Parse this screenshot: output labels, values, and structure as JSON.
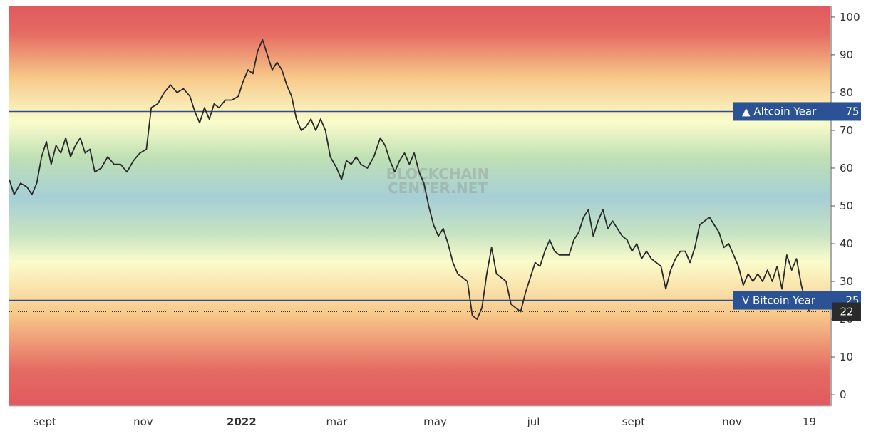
{
  "watermark": {
    "line1": "BLOCKCHAIN",
    "line2": "CENTER.NET"
  },
  "colors": {
    "top": "#e05a5f",
    "orange": "#f7c98a",
    "yellow": "#fbfccc",
    "green": "#bfe0b4",
    "blue": "#a6cfd6",
    "line": "#2a2a2a",
    "threshold_line": "#2a4f8c",
    "badge": "#2a5295",
    "current_badge": "#2b2b2b"
  },
  "chart_data": {
    "type": "line",
    "title": "",
    "ylim": [
      -3,
      103
    ],
    "y_ticks": [
      0,
      10,
      20,
      30,
      40,
      50,
      60,
      70,
      80,
      90,
      100
    ],
    "x_tick_labels": [
      "sept",
      "nov",
      "2022",
      "mar",
      "may",
      "jul",
      "sept",
      "nov",
      "19"
    ],
    "x_tick_dates": [
      "2021-09-01",
      "2021-11-01",
      "2022-01-01",
      "2022-03-01",
      "2022-05-01",
      "2022-07-01",
      "2022-09-01",
      "2022-11-01",
      "2022-12-19"
    ],
    "x_range": [
      "2021-08-10",
      "2023-01-01"
    ],
    "thresholds": [
      {
        "label": "Altcoin Year",
        "value": 75,
        "arrow": "▲"
      },
      {
        "label": "Bitcoin Year",
        "value": 25,
        "arrow": "V"
      }
    ],
    "current_value": 22,
    "series": [
      {
        "values": [
          [
            "2021-08-10",
            57
          ],
          [
            "2021-08-13",
            53
          ],
          [
            "2021-08-17",
            56
          ],
          [
            "2021-08-21",
            55
          ],
          [
            "2021-08-24",
            53
          ],
          [
            "2021-08-27",
            56
          ],
          [
            "2021-08-30",
            63
          ],
          [
            "2021-09-02",
            67
          ],
          [
            "2021-09-05",
            61
          ],
          [
            "2021-09-08",
            66
          ],
          [
            "2021-09-11",
            64
          ],
          [
            "2021-09-14",
            68
          ],
          [
            "2021-09-17",
            63
          ],
          [
            "2021-09-20",
            66
          ],
          [
            "2021-09-23",
            68
          ],
          [
            "2021-09-26",
            64
          ],
          [
            "2021-09-29",
            65
          ],
          [
            "2021-10-02",
            59
          ],
          [
            "2021-10-06",
            60
          ],
          [
            "2021-10-10",
            63
          ],
          [
            "2021-10-14",
            61
          ],
          [
            "2021-10-18",
            61
          ],
          [
            "2021-10-22",
            59
          ],
          [
            "2021-10-26",
            62
          ],
          [
            "2021-10-30",
            64
          ],
          [
            "2021-11-03",
            65
          ],
          [
            "2021-11-06",
            76
          ],
          [
            "2021-11-10",
            77
          ],
          [
            "2021-11-14",
            80
          ],
          [
            "2021-11-18",
            82
          ],
          [
            "2021-11-22",
            80
          ],
          [
            "2021-11-26",
            81
          ],
          [
            "2021-11-30",
            79
          ],
          [
            "2021-12-03",
            75
          ],
          [
            "2021-12-06",
            72
          ],
          [
            "2021-12-09",
            76
          ],
          [
            "2021-12-12",
            73
          ],
          [
            "2021-12-15",
            77
          ],
          [
            "2021-12-18",
            76
          ],
          [
            "2021-12-22",
            78
          ],
          [
            "2021-12-26",
            78
          ],
          [
            "2021-12-30",
            79
          ],
          [
            "2022-01-02",
            83
          ],
          [
            "2022-01-05",
            86
          ],
          [
            "2022-01-08",
            85
          ],
          [
            "2022-01-11",
            91
          ],
          [
            "2022-01-14",
            94
          ],
          [
            "2022-01-17",
            90
          ],
          [
            "2022-01-20",
            86
          ],
          [
            "2022-01-23",
            88
          ],
          [
            "2022-01-26",
            86
          ],
          [
            "2022-01-29",
            82
          ],
          [
            "2022-02-01",
            79
          ],
          [
            "2022-02-04",
            73
          ],
          [
            "2022-02-07",
            70
          ],
          [
            "2022-02-10",
            71
          ],
          [
            "2022-02-13",
            73
          ],
          [
            "2022-02-16",
            70
          ],
          [
            "2022-02-19",
            73
          ],
          [
            "2022-02-22",
            70
          ],
          [
            "2022-02-25",
            63
          ],
          [
            "2022-03-01",
            60
          ],
          [
            "2022-03-04",
            57
          ],
          [
            "2022-03-07",
            62
          ],
          [
            "2022-03-10",
            61
          ],
          [
            "2022-03-13",
            63
          ],
          [
            "2022-03-16",
            61
          ],
          [
            "2022-03-20",
            60
          ],
          [
            "2022-03-24",
            63
          ],
          [
            "2022-03-28",
            68
          ],
          [
            "2022-03-31",
            66
          ],
          [
            "2022-04-03",
            62
          ],
          [
            "2022-04-06",
            59
          ],
          [
            "2022-04-09",
            62
          ],
          [
            "2022-04-12",
            64
          ],
          [
            "2022-04-15",
            61
          ],
          [
            "2022-04-18",
            64
          ],
          [
            "2022-04-21",
            59
          ],
          [
            "2022-04-24",
            56
          ],
          [
            "2022-04-27",
            50
          ],
          [
            "2022-04-30",
            45
          ],
          [
            "2022-05-03",
            42
          ],
          [
            "2022-05-06",
            44
          ],
          [
            "2022-05-09",
            40
          ],
          [
            "2022-05-12",
            35
          ],
          [
            "2022-05-15",
            32
          ],
          [
            "2022-05-18",
            31
          ],
          [
            "2022-05-21",
            30
          ],
          [
            "2022-05-24",
            21
          ],
          [
            "2022-05-27",
            20
          ],
          [
            "2022-05-30",
            23
          ],
          [
            "2022-06-02",
            32
          ],
          [
            "2022-06-05",
            39
          ],
          [
            "2022-06-08",
            32
          ],
          [
            "2022-06-11",
            31
          ],
          [
            "2022-06-14",
            30
          ],
          [
            "2022-06-17",
            24
          ],
          [
            "2022-06-20",
            23
          ],
          [
            "2022-06-23",
            22
          ],
          [
            "2022-06-26",
            27
          ],
          [
            "2022-06-29",
            31
          ],
          [
            "2022-07-02",
            35
          ],
          [
            "2022-07-05",
            34
          ],
          [
            "2022-07-08",
            38
          ],
          [
            "2022-07-11",
            41
          ],
          [
            "2022-07-14",
            38
          ],
          [
            "2022-07-17",
            37
          ],
          [
            "2022-07-20",
            37
          ],
          [
            "2022-07-23",
            37
          ],
          [
            "2022-07-26",
            41
          ],
          [
            "2022-07-29",
            43
          ],
          [
            "2022-08-01",
            47
          ],
          [
            "2022-08-04",
            49
          ],
          [
            "2022-08-07",
            42
          ],
          [
            "2022-08-10",
            46
          ],
          [
            "2022-08-13",
            49
          ],
          [
            "2022-08-16",
            44
          ],
          [
            "2022-08-19",
            46
          ],
          [
            "2022-08-22",
            44
          ],
          [
            "2022-08-25",
            42
          ],
          [
            "2022-08-28",
            41
          ],
          [
            "2022-08-31",
            38
          ],
          [
            "2022-09-03",
            40
          ],
          [
            "2022-09-06",
            36
          ],
          [
            "2022-09-09",
            38
          ],
          [
            "2022-09-12",
            36
          ],
          [
            "2022-09-15",
            35
          ],
          [
            "2022-09-18",
            34
          ],
          [
            "2022-09-21",
            28
          ],
          [
            "2022-09-24",
            33
          ],
          [
            "2022-09-27",
            36
          ],
          [
            "2022-09-30",
            38
          ],
          [
            "2022-10-03",
            38
          ],
          [
            "2022-10-06",
            35
          ],
          [
            "2022-10-09",
            39
          ],
          [
            "2022-10-12",
            45
          ],
          [
            "2022-10-15",
            46
          ],
          [
            "2022-10-18",
            47
          ],
          [
            "2022-10-21",
            45
          ],
          [
            "2022-10-24",
            43
          ],
          [
            "2022-10-27",
            39
          ],
          [
            "2022-10-30",
            40
          ],
          [
            "2022-11-02",
            37
          ],
          [
            "2022-11-05",
            34
          ],
          [
            "2022-11-08",
            29
          ],
          [
            "2022-11-11",
            32
          ],
          [
            "2022-11-14",
            30
          ],
          [
            "2022-11-17",
            32
          ],
          [
            "2022-11-20",
            30
          ],
          [
            "2022-11-23",
            33
          ],
          [
            "2022-11-26",
            30
          ],
          [
            "2022-11-29",
            34
          ],
          [
            "2022-12-02",
            28
          ],
          [
            "2022-12-05",
            37
          ],
          [
            "2022-12-08",
            33
          ],
          [
            "2022-12-11",
            36
          ],
          [
            "2022-12-14",
            29
          ],
          [
            "2022-12-17",
            24
          ],
          [
            "2022-12-19",
            22
          ]
        ]
      }
    ]
  }
}
